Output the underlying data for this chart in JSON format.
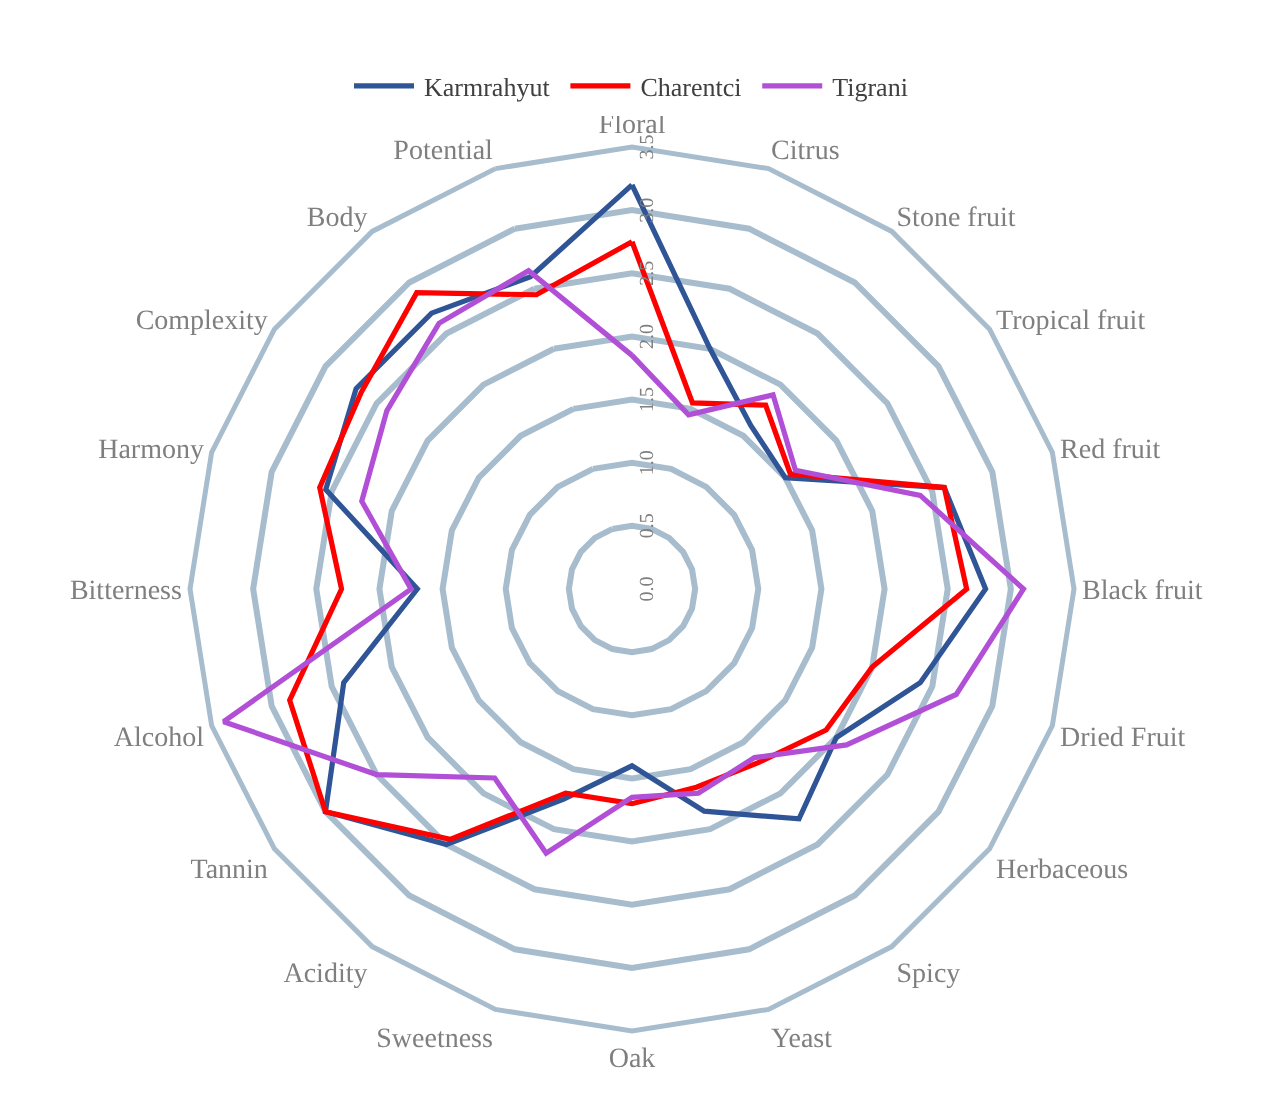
{
  "chart_data": {
    "type": "radar",
    "categories": [
      "Floral",
      "Citrus",
      "Stone fruit",
      "Tropical fruit",
      "Red fruit",
      "Black fruit",
      "Dried Fruit",
      "Herbaceous",
      "Spicy",
      "Yeast",
      "Oak",
      "Sweetness",
      "Acidity",
      "Tannin",
      "Alcohol",
      "Bitterness",
      "Harmony",
      "Complexity",
      "Body",
      "Potential"
    ],
    "series": [
      {
        "name": "Karmrahyut",
        "color": "#2f5597",
        "values": [
          3.2,
          2.0,
          1.6,
          1.5,
          2.6,
          2.8,
          2.4,
          2.0,
          2.25,
          1.85,
          1.4,
          1.75,
          2.5,
          3.0,
          2.4,
          1.7,
          2.55,
          2.7,
          2.7,
          2.6
        ]
      },
      {
        "name": "Charentci",
        "color": "#ff0000",
        "values": [
          2.75,
          1.55,
          1.8,
          1.55,
          2.6,
          2.65,
          2.0,
          1.9,
          1.7,
          1.65,
          1.7,
          1.7,
          2.45,
          3.0,
          2.85,
          2.3,
          2.6,
          2.65,
          2.9,
          2.45
        ]
      },
      {
        "name": "Tigrani",
        "color": "#b150d6",
        "values": [
          1.85,
          1.45,
          1.9,
          1.6,
          2.4,
          3.1,
          2.7,
          2.1,
          1.65,
          1.7,
          1.65,
          2.2,
          1.85,
          2.5,
          3.4,
          1.75,
          2.25,
          2.4,
          2.6,
          2.65
        ]
      }
    ],
    "ylim": [
      0,
      3.5
    ],
    "yticks": [
      {
        "value": 0,
        "label": "0.0"
      },
      {
        "value": 0.5,
        "label": "0.5"
      },
      {
        "value": 1,
        "label": "1.0"
      },
      {
        "value": 1.5,
        "label": "1.5"
      },
      {
        "value": 2,
        "label": "2.0"
      },
      {
        "value": 2.5,
        "label": "2.5"
      },
      {
        "value": 3,
        "label": "3.0"
      },
      {
        "value": 3.5,
        "label": "3.5"
      }
    ],
    "grid": true,
    "legend": "top",
    "marker": "none",
    "line_style": "solid"
  }
}
